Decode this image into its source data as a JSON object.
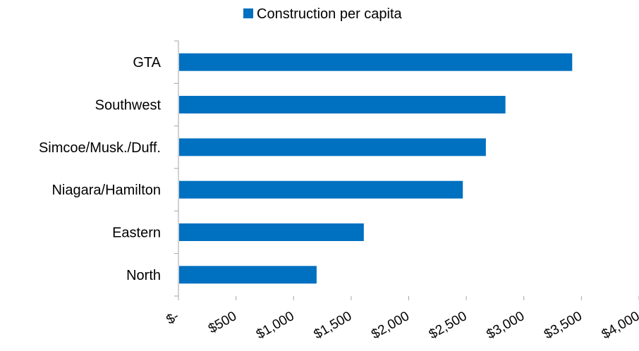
{
  "chart_data": {
    "type": "bar",
    "orientation": "horizontal",
    "title": "",
    "xlabel": "",
    "ylabel": "",
    "categories": [
      "GTA",
      "Southwest",
      "Simcoe/Musk./Duff.",
      "Niagara/Hamilton",
      "Eastern",
      "North"
    ],
    "series": [
      {
        "name": "Construction per capita",
        "values": [
          3420,
          2840,
          2670,
          2470,
          1610,
          1200
        ]
      }
    ],
    "xlim": [
      0,
      4000
    ],
    "x_tick_labels": [
      "$-",
      "$500",
      "$1,000",
      "$1,500",
      "$2,000",
      "$2,500",
      "$3,000",
      "$3,500",
      "$4,000"
    ],
    "grid": false,
    "legend_position": "top-center",
    "colors": {
      "bar": "#0070C0",
      "axis": "#a6a6a6"
    }
  }
}
